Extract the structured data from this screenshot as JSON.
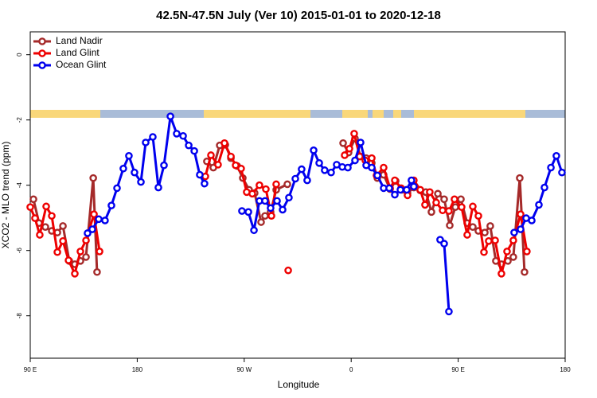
{
  "chart_data": {
    "type": "line",
    "title": "42.5N-47.5N July (Ver 10)   2015-01-01 to 2020-12-18",
    "xlabel": "Longitude",
    "ylabel": "XCO2 - MLO trend (ppm)",
    "xlim": [
      90,
      540
    ],
    "xticks": [
      {
        "value": 90,
        "label": "90 E"
      },
      180,
      {
        "value": 270,
        "label": "90 W"
      },
      {
        "value": 360,
        "label": "0"
      },
      {
        "value": 450,
        "label": "90 E"
      },
      {
        "value": 540,
        "label": "180"
      }
    ],
    "ylim": [
      -9.3,
      0.7
    ],
    "yticks": [
      0,
      -2,
      -4,
      -6,
      -8
    ],
    "legend": "top-left",
    "grid": false,
    "series": [
      {
        "name": "Land Nadir",
        "color": "#a52a2a",
        "x": [
          92.7,
          97.4,
          102.7,
          108.1,
          112.8,
          117.5,
          122.8,
          127.5,
          132.2,
          136.9,
          143.0,
          146.2,
          null,
          238.6,
          244.0,
          249.4,
          254.1,
          258.8,
          264.1,
          268.8,
          274.1,
          278.8,
          284.2,
          287.5,
          292.2,
          296.9,
          306.3,
          null,
          353.2,
          357.8,
          363.2,
          367.9,
          372.6,
          377.3,
          382.0,
          387.3,
          392.7,
          397.4,
          402.7,
          407.4,
          412.7,
          418.1,
          422.8,
          427.5,
          432.9,
          438.2,
          442.9,
          447.6,
          452.3,
          457.6,
          462.3,
          467.0,
          472.4,
          477.0,
          481.7,
          486.4,
          491.8,
          496.4,
          501.8,
          505.8
        ],
        "values": [
          -4.43,
          -5.16,
          -5.28,
          -5.4,
          -5.45,
          -5.25,
          -6.32,
          -6.42,
          -6.32,
          -6.2,
          -3.78,
          -6.66,
          null,
          -3.27,
          -3.46,
          -2.78,
          -2.76,
          -3.17,
          -3.41,
          -3.78,
          -4.14,
          -4.24,
          -5.13,
          -4.94,
          -4.82,
          -4.14,
          -3.97,
          null,
          -2.71,
          -3.0,
          -2.57,
          -3.12,
          -3.17,
          -3.32,
          -3.78,
          -3.68,
          -4.12,
          -3.87,
          -4.14,
          -4.24,
          -4.07,
          -4.16,
          -4.21,
          -4.82,
          -4.26,
          -4.43,
          -5.23,
          -4.67,
          -4.43,
          -5.16,
          -5.28,
          -5.4,
          -5.45,
          -5.25,
          -6.32,
          -6.42,
          -6.32,
          -6.2,
          -3.78,
          -6.66
        ]
      },
      {
        "name": "Land Glint",
        "color": "#ee0000",
        "x": [
          90,
          94,
          98,
          103.4,
          108.1,
          112.8,
          117.5,
          122.2,
          127.5,
          132.2,
          136.9,
          143.6,
          148.3,
          null,
          237.3,
          242.0,
          248.0,
          253.4,
          258.8,
          262.8,
          267.4,
          272.1,
          276.8,
          282.8,
          288.2,
          292.9,
          296.9,
          null,
          307.0,
          null,
          354.5,
          358.5,
          362.5,
          367.2,
          371.9,
          377.3,
          381.3,
          387.3,
          392.7,
          396.7,
          402.0,
          407.4,
          412.7,
          418.1,
          422.1,
          426.1,
          431.5,
          436.9,
          442.2,
          446.9,
          452.9,
          457.6,
          462.3,
          467.0,
          471.7,
          475.7,
          481.1,
          486.4,
          491.1,
          496.4,
          502.5,
          507.8
        ],
        "values": [
          -4.67,
          -5.01,
          -5.52,
          -4.65,
          -4.94,
          -6.05,
          -5.71,
          -6.3,
          -6.71,
          -6.03,
          -5.69,
          -4.89,
          -6.03,
          null,
          -3.73,
          -3.08,
          -3.37,
          -2.71,
          -3.12,
          -3.39,
          -3.49,
          -4.21,
          -4.26,
          -4.0,
          -4.12,
          -4.94,
          -3.97,
          null,
          -6.61,
          null,
          -3.08,
          -2.88,
          -2.42,
          -3.12,
          -3.24,
          -3.17,
          -3.7,
          -3.46,
          -4.09,
          -3.85,
          -4.09,
          -4.31,
          -3.85,
          -4.14,
          -4.6,
          -4.21,
          -4.53,
          -4.77,
          -4.79,
          -4.43,
          -4.67,
          -5.52,
          -4.65,
          -4.94,
          -6.05,
          -5.71,
          -5.69,
          -6.71,
          -6.03,
          -5.69,
          -4.89,
          -6.03
        ]
      },
      {
        "name": "Ocean Glint",
        "color": "#0000ee",
        "x": [
          138.2,
          142.2,
          147.6,
          152.9,
          158.3,
          163.0,
          168.3,
          173.0,
          177.7,
          183.1,
          187.1,
          193.1,
          197.8,
          202.5,
          207.9,
          213.2,
          218.6,
          223.3,
          228.0,
          232.6,
          236.6,
          null,
          268.1,
          273.5,
          278.2,
          282.8,
          287.5,
          292.2,
          297.6,
          302.3,
          307.6,
          313.0,
          318.3,
          323.0,
          328.4,
          333.1,
          337.7,
          343.1,
          347.8,
          352.5,
          357.2,
          363.2,
          367.9,
          372.6,
          377.3,
          382.0,
          387.3,
          392.0,
          396.7,
          401.4,
          406.7,
          410.7,
          412.7,
          null,
          434.8,
          438.2,
          442.2,
          null,
          497.1,
          502.5,
          507.2,
          511.9,
          517.9,
          522.6,
          528.0,
          532.6,
          537.3
        ],
        "values": [
          -5.47,
          -5.35,
          -5.04,
          -5.08,
          -4.62,
          -4.09,
          -3.49,
          -3.1,
          -3.61,
          -3.9,
          -2.69,
          -2.52,
          -4.07,
          -3.39,
          -1.89,
          -2.42,
          -2.49,
          -2.78,
          -2.95,
          -3.68,
          -3.95,
          null,
          -4.79,
          -4.82,
          -5.38,
          -4.48,
          -4.48,
          -4.7,
          -4.48,
          -4.75,
          -4.38,
          -3.8,
          -3.51,
          -3.85,
          -2.93,
          -3.32,
          -3.54,
          -3.61,
          -3.37,
          -3.44,
          -3.46,
          -3.24,
          -2.69,
          -3.39,
          -3.46,
          -3.7,
          -4.09,
          -4.09,
          -4.29,
          -4.14,
          -4.14,
          -3.85,
          -4.04,
          null,
          -5.67,
          -5.79,
          -7.87,
          null,
          -5.45,
          -5.35,
          -5.01,
          -5.08,
          -4.6,
          -4.07,
          -3.46,
          -3.1,
          -3.61
        ]
      }
    ]
  }
}
